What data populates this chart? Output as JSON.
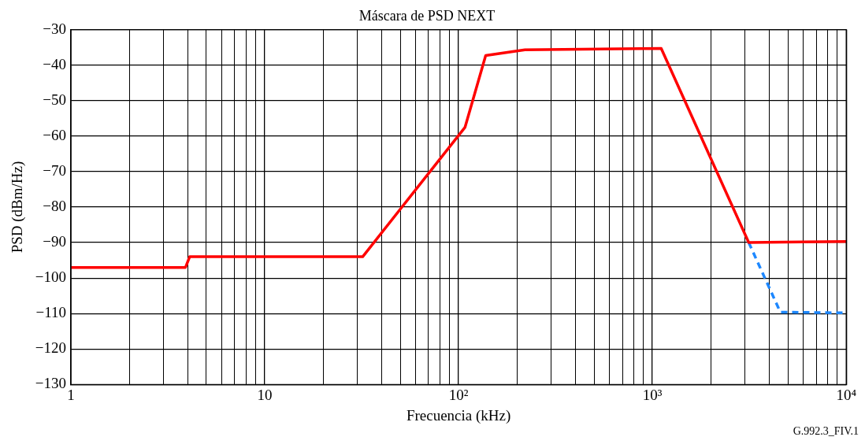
{
  "chart_data": {
    "type": "line",
    "title": "Máscara de PSD NEXT",
    "xlabel": "Frecuencia (kHz)",
    "ylabel": "PSD (dBm/Hz)",
    "log": "x",
    "grid": true,
    "legend": false,
    "marker": "none",
    "xlim": [
      1,
      10000
    ],
    "xticks": [
      1,
      {
        "value": 2,
        "label": null
      },
      {
        "value": 3,
        "label": null
      },
      {
        "value": 4,
        "label": null
      },
      {
        "value": 5,
        "label": null
      },
      {
        "value": 6,
        "label": null
      },
      {
        "value": 7,
        "label": null
      },
      {
        "value": 8,
        "label": null
      },
      {
        "value": 9,
        "label": null
      },
      10,
      {
        "value": 20,
        "label": null
      },
      {
        "value": 30,
        "label": null
      },
      {
        "value": 40,
        "label": null
      },
      {
        "value": 50,
        "label": null
      },
      {
        "value": 60,
        "label": null
      },
      {
        "value": 70,
        "label": null
      },
      {
        "value": 80,
        "label": null
      },
      {
        "value": 90,
        "label": null
      },
      {
        "value": 100,
        "label": "10²"
      },
      {
        "value": 200,
        "label": null
      },
      {
        "value": 300,
        "label": null
      },
      {
        "value": 400,
        "label": null
      },
      {
        "value": 500,
        "label": null
      },
      {
        "value": 600,
        "label": null
      },
      {
        "value": 700,
        "label": null
      },
      {
        "value": 800,
        "label": null
      },
      {
        "value": 900,
        "label": null
      },
      {
        "value": 1000,
        "label": "10³"
      },
      {
        "value": 2000,
        "label": null
      },
      {
        "value": 3000,
        "label": null
      },
      {
        "value": 4000,
        "label": null
      },
      {
        "value": 5000,
        "label": null
      },
      {
        "value": 6000,
        "label": null
      },
      {
        "value": 7000,
        "label": null
      },
      {
        "value": 8000,
        "label": null
      },
      {
        "value": 9000,
        "label": null
      },
      {
        "value": 10000,
        "label": "10⁴"
      }
    ],
    "ylim": [
      -130,
      -30
    ],
    "yticks": [
      {
        "value": -130,
        "label": "−130"
      },
      {
        "value": -120,
        "label": "−120"
      },
      {
        "value": -110,
        "label": "−110"
      },
      {
        "value": -100,
        "label": "−100"
      },
      {
        "value": -90,
        "label": "−90"
      },
      {
        "value": -80,
        "label": "−80"
      },
      {
        "value": -70,
        "label": "−70"
      },
      {
        "value": -60,
        "label": "−60"
      },
      {
        "value": -50,
        "label": "−50"
      },
      {
        "value": -40,
        "label": "−40"
      },
      {
        "value": -30,
        "label": "−30"
      }
    ],
    "series": [
      {
        "color": "#ff0000",
        "line_style": "solid",
        "x": [
          1,
          3.9,
          4.1,
          32,
          108,
          138,
          220,
          1110,
          3140,
          10000
        ],
        "values": [
          -97,
          -97,
          -94,
          -94,
          -57.5,
          -37.3,
          -35.7,
          -35.3,
          -90,
          -89.7
        ]
      },
      {
        "color": "#1e88ff",
        "line_style": "dashed",
        "x": [
          3140,
          4570,
          10000
        ],
        "values": [
          -90,
          -109.6,
          -109.8
        ]
      }
    ],
    "annotations": [
      "G.992.3_FIV.1"
    ]
  }
}
